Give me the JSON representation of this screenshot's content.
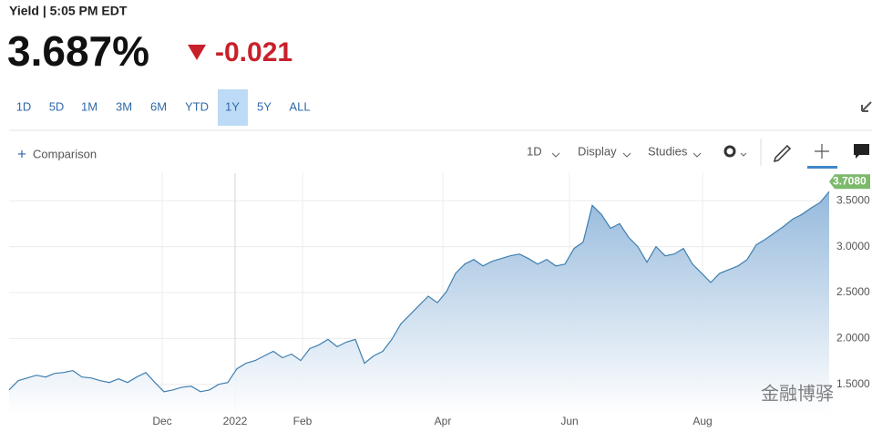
{
  "header": {
    "title": "Yield | 5:05 PM EDT",
    "price": "3.687%",
    "change": "-0.021"
  },
  "ranges": [
    "1D",
    "5D",
    "1M",
    "3M",
    "6M",
    "YTD",
    "1Y",
    "5Y",
    "ALL"
  ],
  "toolbar": {
    "comparison": "Comparison",
    "interval": "1D",
    "display": "Display",
    "studies": "Studies"
  },
  "watermark": "金融博驿",
  "chart_data": {
    "type": "area",
    "color": "#3f7fb0",
    "values": [
      1.44,
      1.54,
      1.57,
      1.6,
      1.58,
      1.62,
      1.63,
      1.65,
      1.58,
      1.57,
      1.54,
      1.52,
      1.56,
      1.52,
      1.58,
      1.63,
      1.52,
      1.42,
      1.44,
      1.47,
      1.48,
      1.42,
      1.44,
      1.5,
      1.52,
      1.67,
      1.73,
      1.76,
      1.81,
      1.86,
      1.79,
      1.83,
      1.76,
      1.89,
      1.93,
      1.99,
      1.91,
      1.96,
      1.99,
      1.73,
      1.81,
      1.86,
      1.99,
      2.16,
      2.26,
      2.36,
      2.46,
      2.39,
      2.51,
      2.71,
      2.81,
      2.86,
      2.79,
      2.84,
      2.87,
      2.9,
      2.92,
      2.87,
      2.81,
      2.86,
      2.79,
      2.81,
      2.98,
      3.05,
      3.45,
      3.35,
      3.2,
      3.25,
      3.1,
      3.0,
      2.83,
      3.0,
      2.9,
      2.92,
      2.98,
      2.81,
      2.71,
      2.61,
      2.71,
      2.75,
      2.79,
      2.86,
      3.02,
      3.08,
      3.15,
      3.22,
      3.3,
      3.35,
      3.42,
      3.48,
      3.6
    ],
    "xlim": [
      0,
      90
    ],
    "xticks": [
      {
        "value": 16.8,
        "label": "Dec"
      },
      {
        "value": 24.8,
        "label": "2022"
      },
      {
        "value": 32.2,
        "label": "Feb"
      },
      {
        "value": 47.6,
        "label": "Apr"
      },
      {
        "value": 61.5,
        "label": "Jun"
      },
      {
        "value": 76.1,
        "label": "Aug"
      }
    ],
    "ylim": [
      1.17,
      3.8
    ],
    "yticks": [
      {
        "value": 1.5,
        "label": "1.5000"
      },
      {
        "value": 2,
        "label": "2.0000"
      },
      {
        "value": 2.5,
        "label": "2.5000"
      },
      {
        "value": 3,
        "label": "3.0000"
      },
      {
        "value": 3.5,
        "label": "3.5000"
      }
    ],
    "current": {
      "value": 3.708,
      "label": "3.7080"
    },
    "badge_color": "#7cb96b",
    "grid": true
  }
}
